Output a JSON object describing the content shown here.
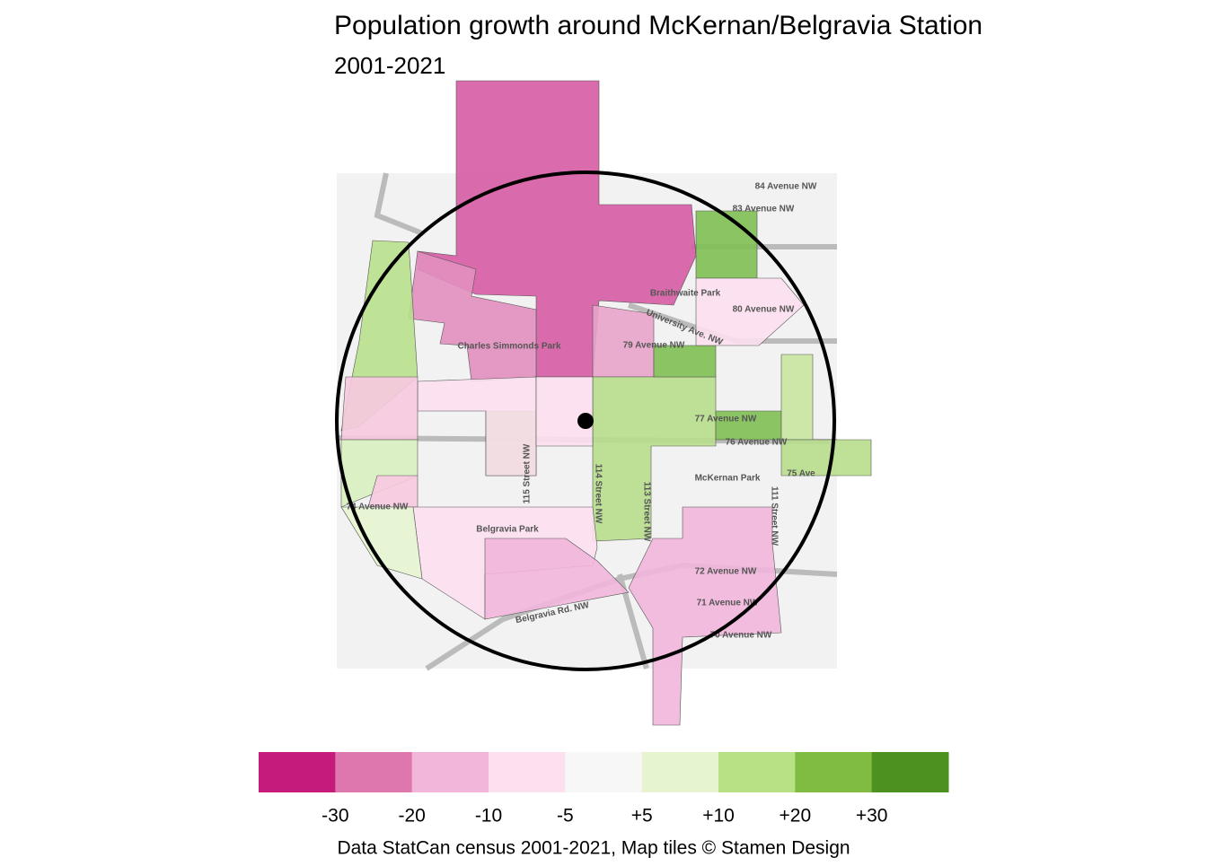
{
  "title": "Population growth around McKernan/Belgravia Station",
  "subtitle": "2001-2021",
  "legend": {
    "colors": [
      "#c51b7d",
      "#de77ae",
      "#f1b6da",
      "#fde0ef",
      "#f7f7f7",
      "#e6f5d0",
      "#b8e186",
      "#7fbc41",
      "#4d9221"
    ],
    "labels": [
      "-30",
      "-20",
      "-10",
      "-5",
      "+5",
      "+10",
      "+20",
      "+30"
    ]
  },
  "caption": "Data StatCan census 2001-2021, Map tiles © Stamen Design",
  "map": {
    "labels": [
      "84 Avenue NW",
      "83 Avenue NW",
      "Braithwaite Park",
      "80 Avenue NW",
      "University Ave. NW",
      "Charles Simmonds Park",
      "79 Avenue NW",
      "77 Avenue NW",
      "76 Avenue NW",
      "75 Ave",
      "McKernan Park",
      "115 Street NW",
      "114 Street NW",
      "113 Street NW",
      "111 Street NW",
      "Belgravia Park",
      "72 Avenue NW",
      "Belgravia Rd. NW",
      "71 Avenue NW",
      "70 Avenue NW",
      "74 Avenue NW"
    ]
  }
}
